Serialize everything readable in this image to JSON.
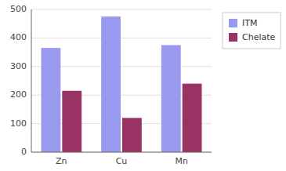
{
  "chart_data": {
    "type": "bar",
    "categories": [
      "Zn",
      "Cu",
      "Mn"
    ],
    "series": [
      {
        "name": "ITM",
        "color": "#9999ee",
        "values": [
          365,
          475,
          375
        ]
      },
      {
        "name": "Chelate",
        "color": "#993366",
        "values": [
          215,
          120,
          240
        ]
      }
    ],
    "ylim": [
      0,
      500
    ],
    "yticks": [
      0,
      100,
      200,
      300,
      400,
      500
    ],
    "grid": true,
    "legend": "right"
  }
}
